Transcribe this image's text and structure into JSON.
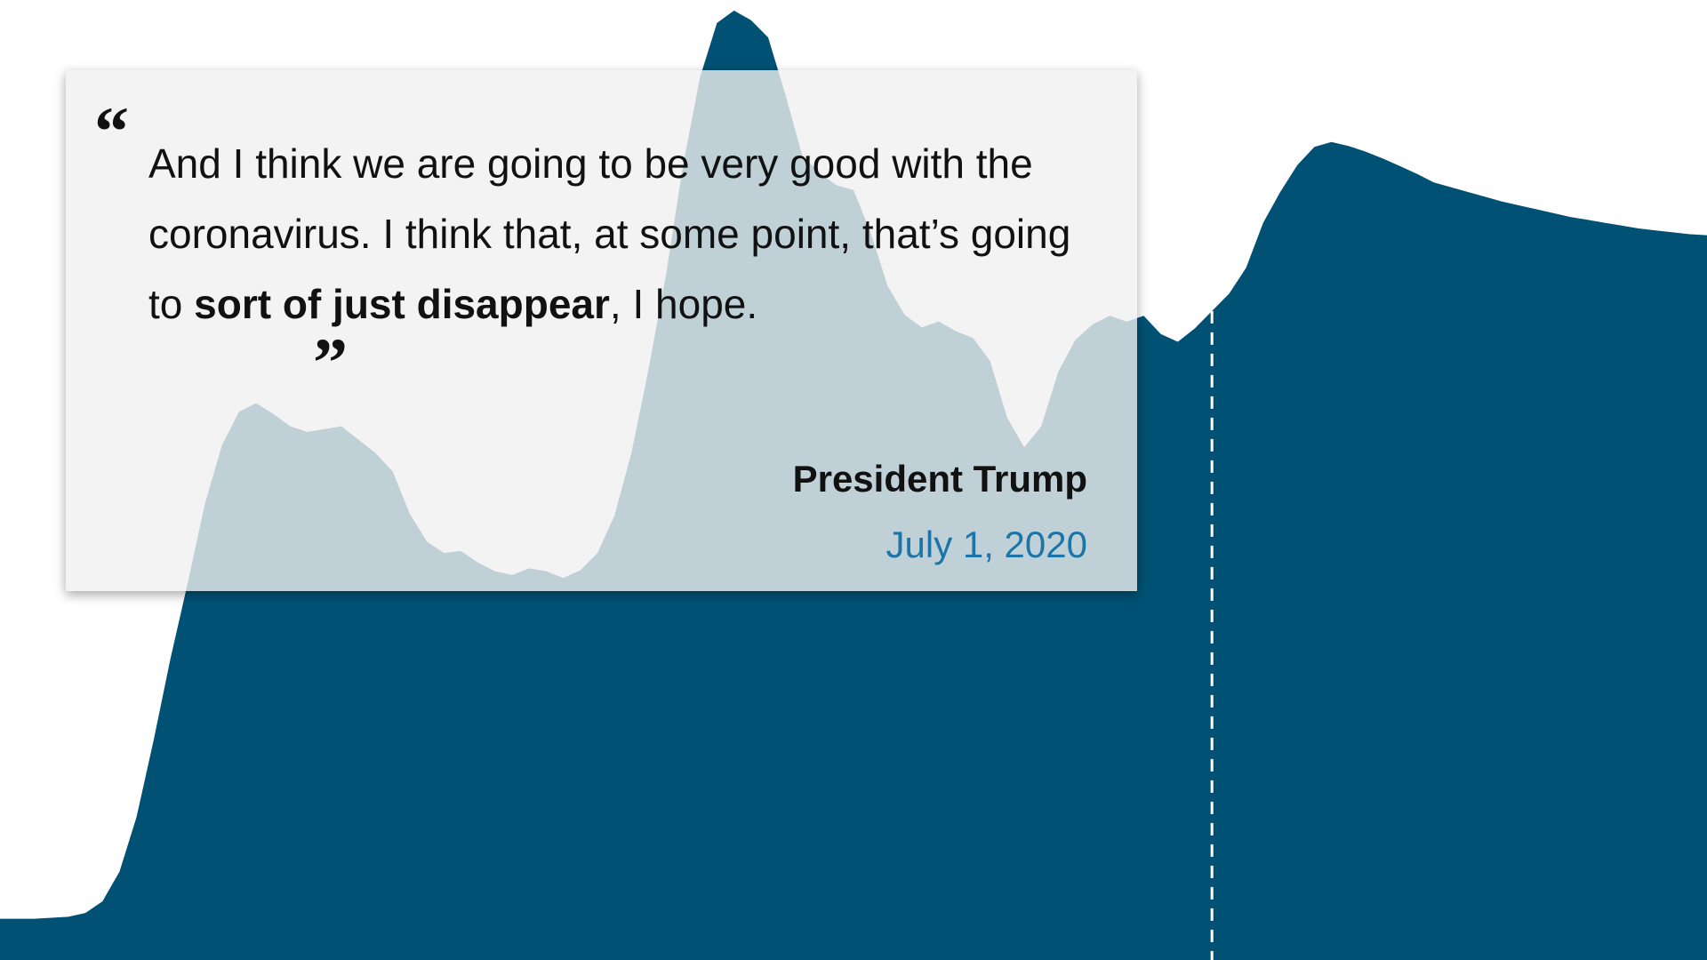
{
  "quote": {
    "text_before": "And I think we are going to be very good with the coronavirus. I think that, at some point, that’s going to ",
    "text_emphasis": "sort of just disappear",
    "text_after": ", I hope.",
    "open_mark": "“",
    "close_mark": "”",
    "speaker": "President Trump",
    "date": "July 1, 2020"
  },
  "colors": {
    "area_fill": "#005174",
    "marker_line": "#ffffff",
    "card_bg": "#f0f0f0",
    "date_text": "#1b75a9"
  },
  "chart_data": {
    "type": "area",
    "title": "",
    "xlabel": "",
    "ylabel": "",
    "grid": false,
    "legend": "none",
    "ylim": [
      0,
      100
    ],
    "x": [
      0,
      1,
      2,
      3,
      4,
      5,
      6,
      7,
      8,
      9,
      10,
      11,
      12,
      13,
      14,
      15,
      16,
      17,
      18,
      19,
      20,
      21,
      22,
      23,
      24,
      25,
      26,
      27,
      28,
      29,
      30,
      31,
      32,
      33,
      34,
      35,
      36,
      37,
      38,
      39,
      40,
      41,
      42,
      43,
      44,
      45,
      46,
      47,
      48,
      49,
      50,
      51,
      52,
      53,
      54,
      55,
      56,
      57,
      58,
      59,
      60,
      61,
      62,
      63,
      64,
      65,
      66,
      67,
      68,
      69,
      70,
      71,
      72,
      73,
      74,
      75,
      76,
      77,
      78,
      79,
      80,
      81,
      82,
      83,
      84,
      85,
      86,
      87,
      88,
      89,
      90,
      91,
      92,
      93,
      94,
      95,
      96,
      97,
      98,
      99,
      100
    ],
    "series": [
      {
        "values": [
          4.3,
          4.3,
          4.3,
          4.4,
          4.5,
          4.9,
          6.1,
          9.2,
          14.9,
          22.9,
          31.5,
          39.3,
          47.5,
          53.6,
          57.1,
          58.0,
          56.9,
          55.6,
          55.0,
          55.3,
          55.6,
          54.2,
          52.8,
          50.9,
          46.5,
          43.6,
          42.4,
          42.6,
          41.4,
          40.5,
          40.1,
          40.8,
          40.5,
          39.8,
          40.6,
          42.4,
          46.3,
          52.9,
          61.6,
          71.2,
          82.6,
          91.9,
          97.6,
          98.9,
          97.9,
          96.1,
          90.2,
          83.8,
          82.0,
          80.7,
          80.2,
          75.8,
          70.2,
          67.2,
          65.9,
          66.5,
          65.5,
          64.8,
          62.4,
          56.5,
          53.4,
          55.6,
          61.3,
          64.6,
          66.2,
          67.1,
          66.5,
          67.1,
          65.2,
          64.4,
          65.8,
          67.6,
          69.4,
          72.1,
          76.8,
          80.0,
          82.8,
          84.7,
          85.2,
          84.8,
          84.2,
          83.5,
          82.7,
          81.9,
          81.0,
          80.5,
          80.0,
          79.5,
          79.0,
          78.6,
          78.2,
          77.8,
          77.4,
          77.1,
          76.8,
          76.5,
          76.2,
          76.0,
          75.8,
          75.6,
          75.5
        ]
      }
    ],
    "annotations": [
      {
        "type": "vertical-marker",
        "x": 71,
        "label": "July 1, 2020"
      }
    ]
  }
}
